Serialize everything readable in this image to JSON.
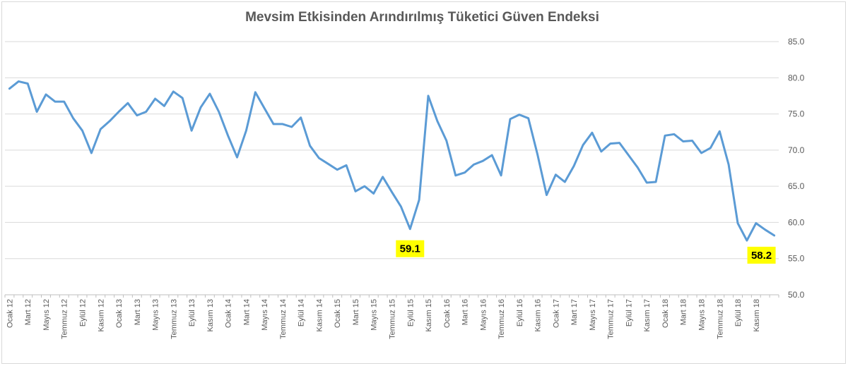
{
  "chart_data": {
    "type": "line",
    "title": "Mevsim Etkisinden Arındırılmış Tüketici Güven Endeksi",
    "xlabel": "",
    "ylabel": "",
    "ylim": [
      50,
      85
    ],
    "yticks": [
      "50.0",
      "55.0",
      "60.0",
      "65.0",
      "70.0",
      "75.0",
      "80.0",
      "85.0"
    ],
    "grid": true,
    "legend": "none",
    "line_color": "#5b9bd5",
    "callout_color": "#ffff00",
    "x_tick_labels": [
      "Ocak 12",
      "Mart 12",
      "Mayıs 12",
      "Temmuz 12",
      "Eylül 12",
      "Kasım 12",
      "Ocak 13",
      "Mart 13",
      "Mayıs 13",
      "Temmuz 13",
      "Eylül 13",
      "Kasım 13",
      "Ocak 14",
      "Mart 14",
      "Mayıs 14",
      "Temmuz 14",
      "Eylül 14",
      "Kasım 14",
      "Ocak 15",
      "Mart 15",
      "Mayıs 15",
      "Temmuz 15",
      "Eylül 15",
      "Kasım 15",
      "Ocak 16",
      "Mart 16",
      "Mayıs 16",
      "Temmuz 16",
      "Eylül 16",
      "Kasım 16",
      "Ocak 17",
      "Mart 17",
      "Mayıs 17",
      "Temmuz 17",
      "Eylül 17",
      "Kasım 17",
      "Ocak 18",
      "Mart 18",
      "Mayıs 18",
      "Temmuz 18",
      "Eylül 18",
      "Kasım 18"
    ],
    "values": [
      78.5,
      79.5,
      79.2,
      75.3,
      77.7,
      76.7,
      76.7,
      74.4,
      72.7,
      69.6,
      72.9,
      74.0,
      75.3,
      76.5,
      74.8,
      75.3,
      77.1,
      76.1,
      78.1,
      77.2,
      72.7,
      75.9,
      77.8,
      75.3,
      72.0,
      69.0,
      72.7,
      78.0,
      75.8,
      73.6,
      73.6,
      73.2,
      74.5,
      70.6,
      68.9,
      68.1,
      67.3,
      67.9,
      64.3,
      65.0,
      64.0,
      66.3,
      64.2,
      62.2,
      59.1,
      63.1,
      77.5,
      74.0,
      71.3,
      66.5,
      66.9,
      68.0,
      68.5,
      69.3,
      66.5,
      74.3,
      74.9,
      74.4,
      69.4,
      63.8,
      66.6,
      65.6,
      67.8,
      70.7,
      72.4,
      69.8,
      70.9,
      71.0,
      69.3,
      67.6,
      65.5,
      65.6,
      72.0,
      72.2,
      71.2,
      71.3,
      69.6,
      70.3,
      72.6,
      68.0,
      59.9,
      57.5,
      59.9,
      59.0,
      58.2
    ],
    "annotations": [
      {
        "index": 44,
        "label": "59.1"
      },
      {
        "index": 84,
        "label": "58.2"
      }
    ]
  }
}
